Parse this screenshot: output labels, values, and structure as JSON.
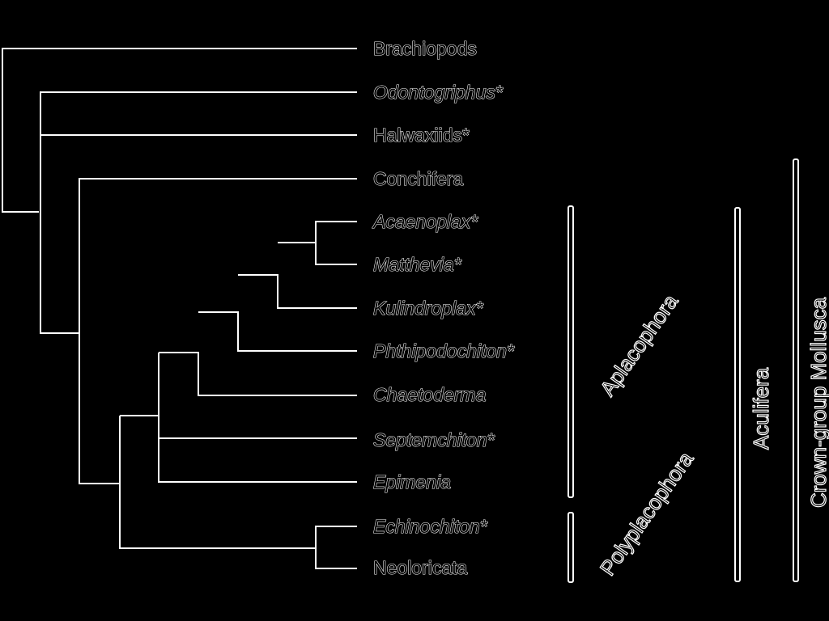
{
  "diagram": {
    "taxa": [
      {
        "id": "brachiopods",
        "name": "Brachiopods",
        "italic": false,
        "suffix": ""
      },
      {
        "id": "odontogriphus",
        "name": "Odontogriphus",
        "italic": true,
        "suffix": "*"
      },
      {
        "id": "halwaxiids",
        "name": "Halwaxiids",
        "italic": false,
        "suffix": "*"
      },
      {
        "id": "conchifera",
        "name": "Conchifera",
        "italic": false,
        "suffix": ""
      },
      {
        "id": "acaenoplax",
        "name": "Acaenoplax",
        "italic": true,
        "suffix": "*"
      },
      {
        "id": "matthevia",
        "name": "Matthevia",
        "italic": true,
        "suffix": "*"
      },
      {
        "id": "kulindroplax",
        "name": "Kulindroplax",
        "italic": true,
        "suffix": "*"
      },
      {
        "id": "phthipodochiton",
        "name": "Phthipodochiton",
        "italic": true,
        "suffix": "*"
      },
      {
        "id": "chaetoderma",
        "name": "Chaetoderma",
        "italic": true,
        "suffix": ""
      },
      {
        "id": "septemchiton",
        "name": "Septemchiton",
        "italic": true,
        "suffix": "*"
      },
      {
        "id": "epimenia",
        "name": "Epimenia",
        "italic": true,
        "suffix": ""
      },
      {
        "id": "echinochiton",
        "name": "Echinochiton",
        "italic": true,
        "suffix": "*"
      },
      {
        "id": "neoloricata",
        "name": "Neoloricata",
        "italic": false,
        "suffix": ""
      }
    ],
    "groups": {
      "aplacophora": "Aplacophora",
      "polyplacophora": "Polyplacophora",
      "aculifera": "Aculifera",
      "crown_mollusca": "Crown-group Mollusca"
    },
    "colors": {
      "background": "#000000",
      "lines": "#ffffff"
    }
  }
}
